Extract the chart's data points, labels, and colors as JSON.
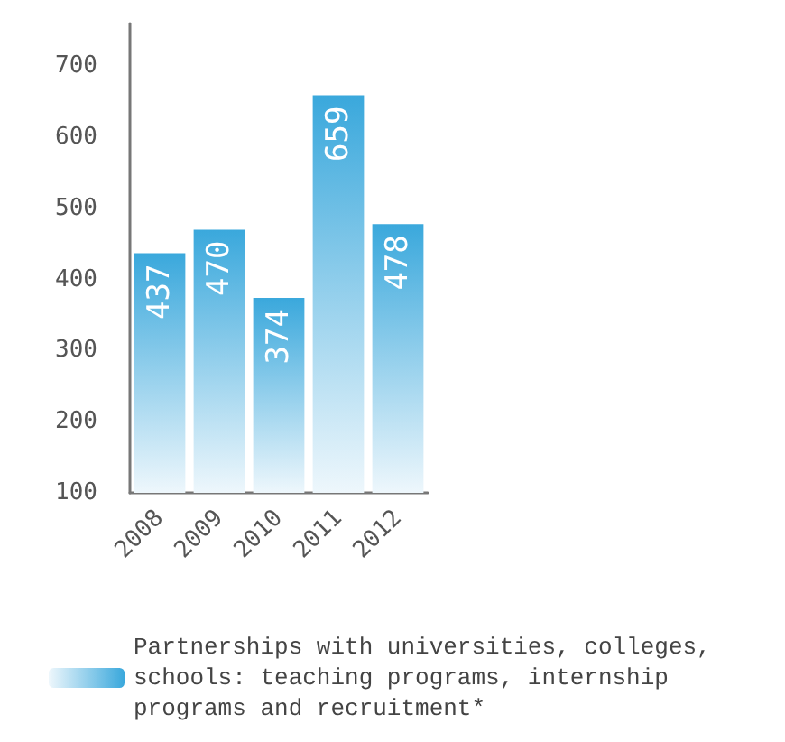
{
  "chart_data": {
    "type": "bar",
    "categories": [
      "2008",
      "2009",
      "2010",
      "2011",
      "2012"
    ],
    "series": [
      {
        "name": "Partnerships with universities, colleges, schools: teaching programs, internship programs and recruitment*",
        "color": "#3aa8dc",
        "values": [
          437,
          470,
          374,
          659,
          478
        ]
      }
    ],
    "ylim": [
      100,
      760
    ],
    "yticks": [
      100,
      200,
      300,
      400,
      500,
      600,
      700
    ],
    "data_labels": true,
    "grid": false,
    "legend": "bottom"
  }
}
